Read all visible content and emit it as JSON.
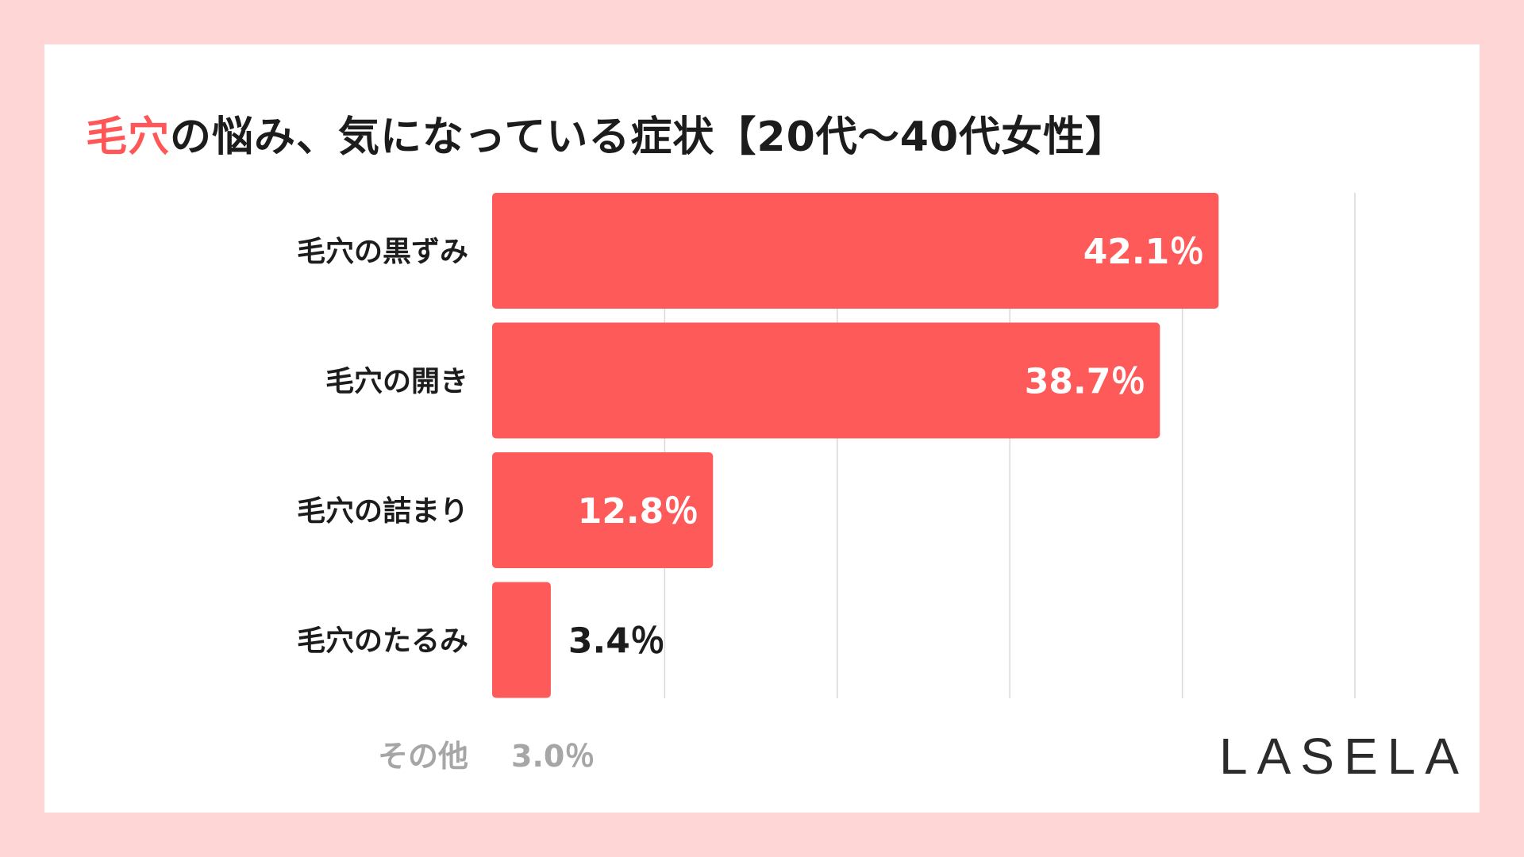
{
  "title": {
    "accent": "毛穴",
    "rest": "の悩み、気になっている症状【20代〜40代女性】"
  },
  "colors": {
    "background": "#ffd6d6",
    "bar": "#ff5a5a",
    "accent": "#ff5757",
    "grid": "#d9d9d9",
    "muted": "#a6a6a6"
  },
  "chart_data": {
    "type": "bar",
    "orientation": "horizontal",
    "title": "毛穴の悩み、気になっている症状【20代〜40代女性】",
    "categories": [
      "毛穴の黒ずみ",
      "毛穴の開き",
      "毛穴の詰まり",
      "毛穴のたるみ"
    ],
    "values": [
      42.1,
      38.7,
      12.8,
      3.4
    ],
    "value_labels": [
      "42.1％",
      "38.7％",
      "12.8％",
      "3.4％"
    ],
    "unit": "%",
    "xlim": [
      0,
      50
    ],
    "gridlines": [
      10,
      20,
      30,
      40,
      50
    ],
    "xlabel": "",
    "ylabel": ""
  },
  "other": {
    "label": "その他",
    "value": "3.0％"
  },
  "brand": {
    "logo": "LASELA"
  }
}
